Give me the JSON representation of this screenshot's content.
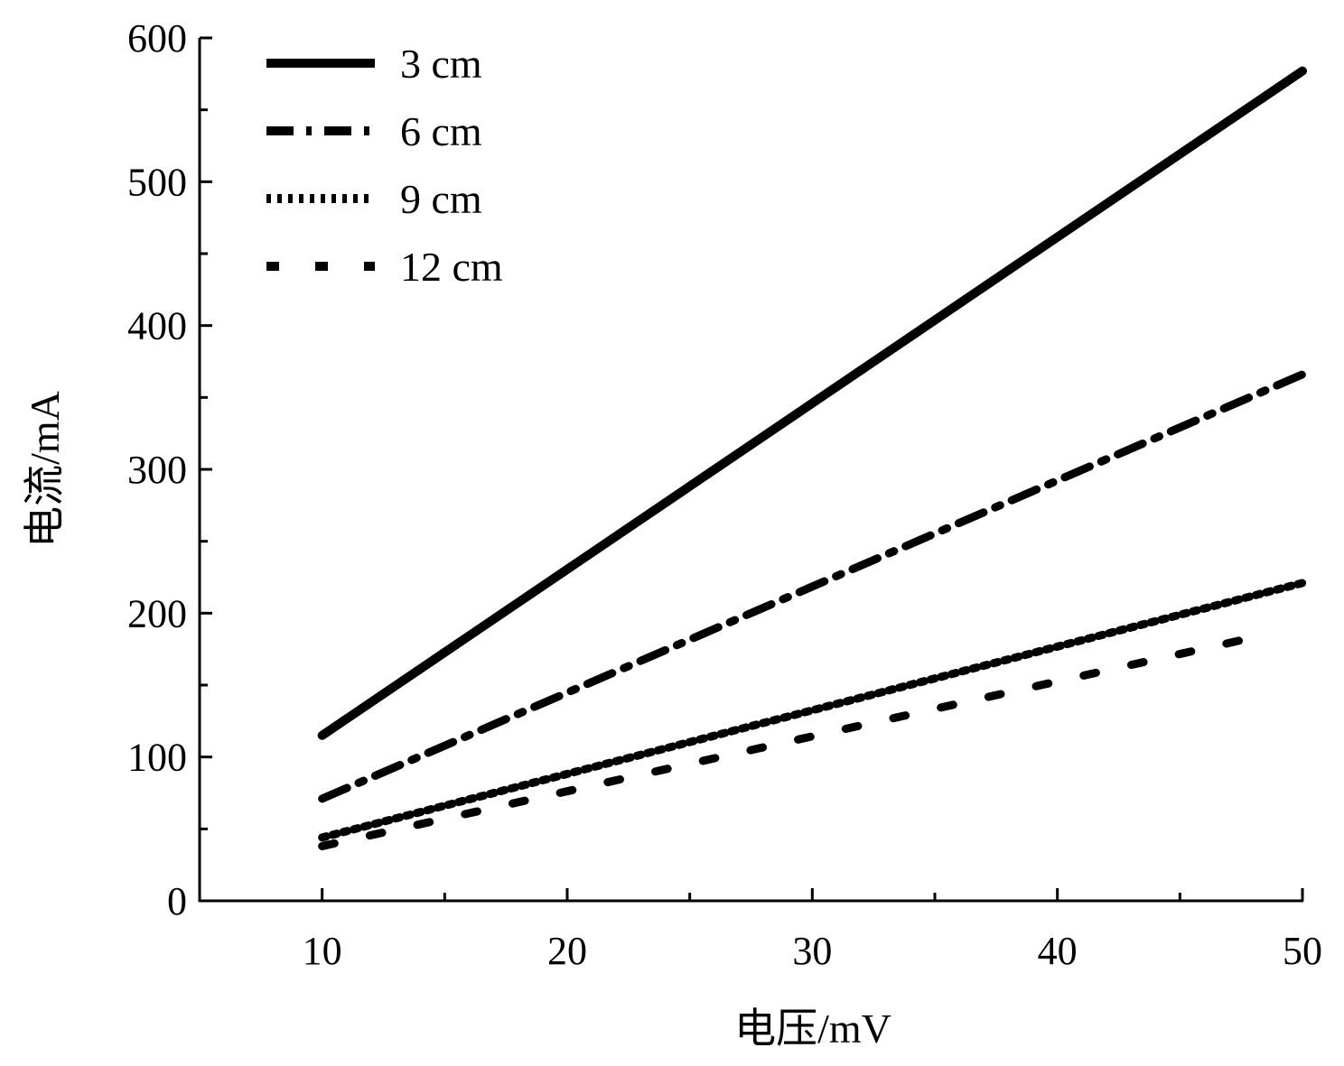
{
  "chart_data": {
    "type": "line",
    "title": "",
    "xlabel": "电压/mV",
    "ylabel": "电流/mA",
    "xlim": [
      5,
      50
    ],
    "ylim": [
      0,
      600
    ],
    "xticks": [
      10,
      20,
      30,
      40,
      50
    ],
    "yticks": [
      0,
      100,
      200,
      300,
      400,
      500,
      600
    ],
    "grid": false,
    "legend_position": "top-left",
    "series": [
      {
        "name": "3 cm",
        "style": "solid",
        "x": [
          10,
          50
        ],
        "y": [
          115,
          577
        ]
      },
      {
        "name": "6 cm",
        "style": "dashdot",
        "x": [
          10,
          50
        ],
        "y": [
          71,
          366
        ]
      },
      {
        "name": "9 cm",
        "style": "dotted",
        "x": [
          10,
          50
        ],
        "y": [
          44,
          221
        ]
      },
      {
        "name": "12 cm",
        "style": "dashed",
        "x": [
          10,
          48.5
        ],
        "y": [
          38,
          185
        ]
      }
    ],
    "color": "#000000"
  }
}
